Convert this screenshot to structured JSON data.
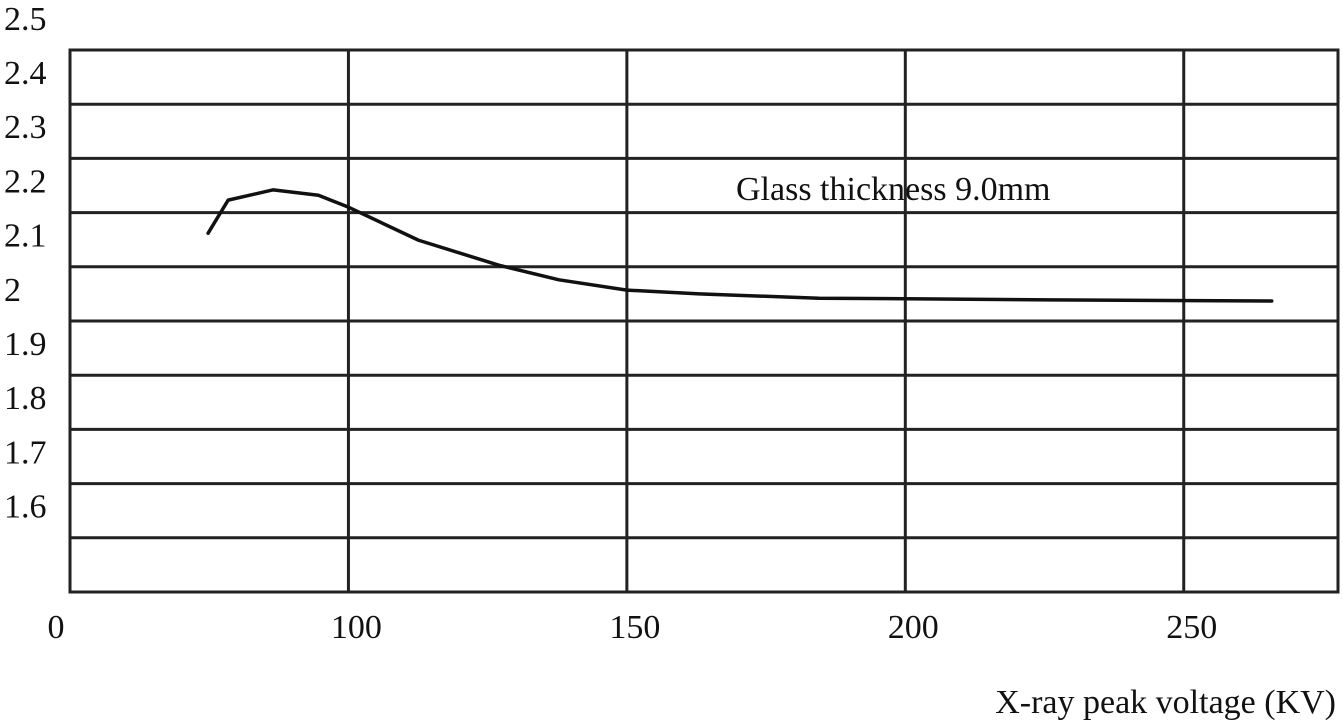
{
  "chart_data": {
    "type": "line",
    "annotation": "Glass thickness 9.0mm",
    "x_label": "X-ray peak voltage (KV)",
    "series": [
      {
        "color": "#111111",
        "x": [
          74.8,
          78.4,
          86.5,
          94.6,
          100,
          112.6,
          127,
          137.8,
          150,
          163,
          184.5,
          200,
          225.9,
          265.8
        ],
        "values": [
          2.162,
          2.223,
          2.242,
          2.232,
          2.21,
          2.149,
          2.103,
          2.076,
          2.057,
          2.05,
          2.042,
          2.041,
          2.039,
          2.037
        ]
      }
    ],
    "xlim": [
      50,
      277.7
    ],
    "xticks": [
      {
        "value": 50,
        "label": "0"
      },
      100,
      150,
      200,
      250
    ],
    "ylim": [
      1.5,
      2.5
    ],
    "yticks": [
      1.6,
      1.7,
      1.8,
      1.9,
      2,
      2.1,
      2.2,
      2.3,
      2.4,
      2.5
    ],
    "grid": true
  }
}
